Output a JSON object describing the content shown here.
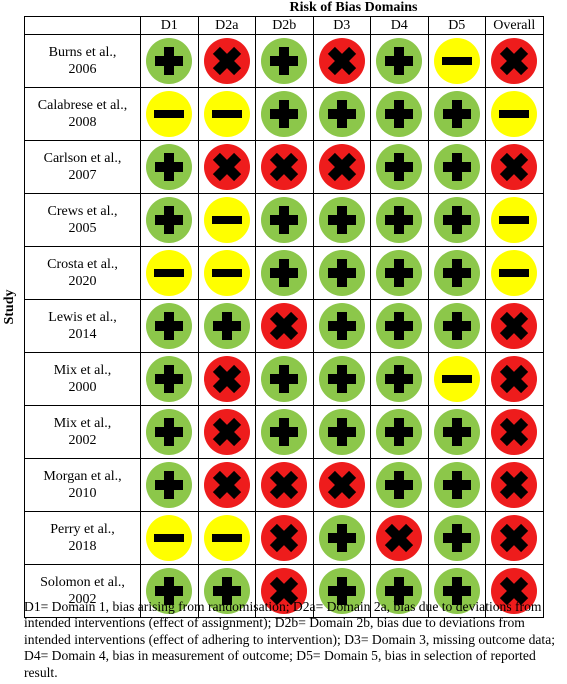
{
  "title": "Risk of Bias Domains",
  "y_label": "Study",
  "columns": [
    "D1",
    "D2a",
    "D2b",
    "D3",
    "D4",
    "D5",
    "Overall"
  ],
  "legend_colors": {
    "low": "#8cc74a",
    "high": "#ee1c1c",
    "some_concerns": "#ffff00"
  },
  "icons": {
    "low": "plus-icon",
    "high": "cross-icon",
    "some_concerns": "minus-icon"
  },
  "rows": [
    {
      "study": [
        "Burns et al.,",
        "2006"
      ],
      "ratings": [
        "low",
        "high",
        "low",
        "high",
        "low",
        "some",
        "high"
      ]
    },
    {
      "study": [
        "Calabrese et al.,",
        "2008"
      ],
      "ratings": [
        "some",
        "some",
        "low",
        "low",
        "low",
        "low",
        "some"
      ]
    },
    {
      "study": [
        "Carlson et al.,",
        "2007"
      ],
      "ratings": [
        "low",
        "high",
        "high",
        "high",
        "low",
        "low",
        "high"
      ]
    },
    {
      "study": [
        "Crews et al.,",
        "2005"
      ],
      "ratings": [
        "low",
        "some",
        "low",
        "low",
        "low",
        "low",
        "some"
      ]
    },
    {
      "study": [
        "Crosta et al.,",
        "2020"
      ],
      "ratings": [
        "some",
        "some",
        "low",
        "low",
        "low",
        "low",
        "some"
      ]
    },
    {
      "study": [
        "Lewis et al.,",
        "2014"
      ],
      "ratings": [
        "low",
        "low",
        "high",
        "low",
        "low",
        "low",
        "high"
      ]
    },
    {
      "study": [
        "Mix et al.,",
        "2000"
      ],
      "ratings": [
        "low",
        "high",
        "low",
        "low",
        "low",
        "some",
        "high"
      ]
    },
    {
      "study": [
        "Mix et al.,",
        "2002"
      ],
      "ratings": [
        "low",
        "high",
        "low",
        "low",
        "low",
        "low",
        "high"
      ]
    },
    {
      "study": [
        "Morgan et al.,",
        "2010"
      ],
      "ratings": [
        "low",
        "high",
        "high",
        "high",
        "low",
        "low",
        "high"
      ]
    },
    {
      "study": [
        "Perry et al.,",
        "2018"
      ],
      "ratings": [
        "some",
        "some",
        "high",
        "low",
        "high",
        "low",
        "high"
      ]
    },
    {
      "study": [
        "Solomon et al.,",
        "2002"
      ],
      "ratings": [
        "low",
        "low",
        "high",
        "low",
        "low",
        "low",
        "high"
      ]
    }
  ],
  "footnote": "D1= Domain 1, bias arising from randomisation; D2a= Domain 2a, bias due to deviations from intended interventions (effect of assignment); D2b= Domain 2b, bias due to deviations from intended interventions (effect of adhering to intervention); D3= Domain 3, missing outcome data; D4= Domain 4, bias in measurement of outcome; D5= Domain 5, bias in selection of reported result."
}
